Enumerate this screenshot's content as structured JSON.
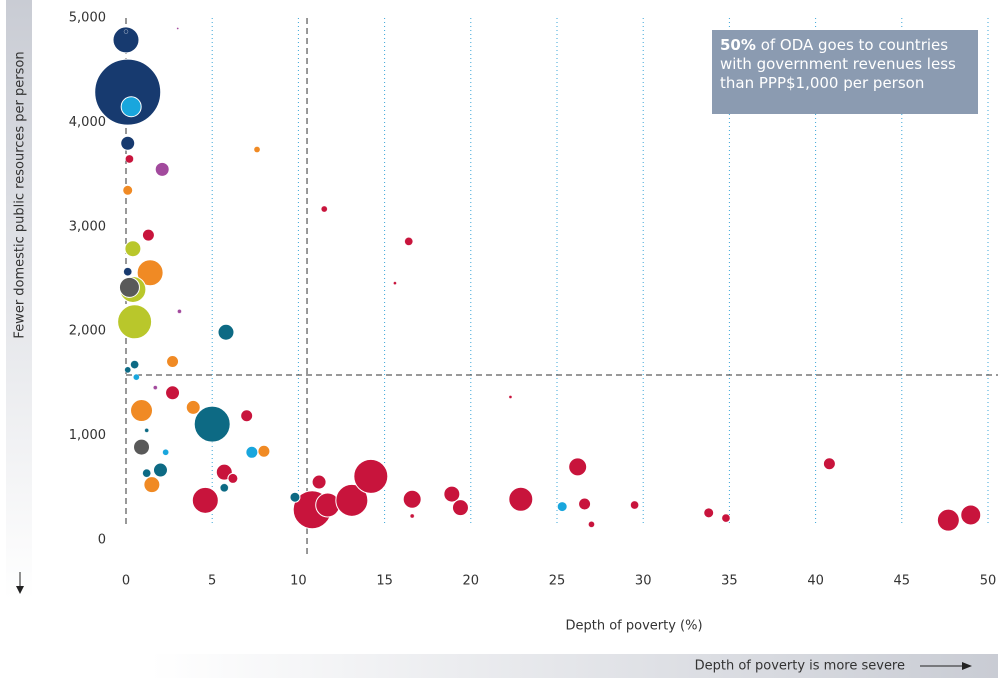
{
  "chart_data": {
    "type": "bubble",
    "xlabel": "Depth of poverty (%)",
    "ylabel": "Fewer domestic public resources per person",
    "bottom_note": "Depth of poverty is more severe",
    "annotation_bold": "50%",
    "annotation": "of ODA goes to countries with government revenues less than PPP$1,000 per person",
    "xlim": [
      0,
      50
    ],
    "ylim": [
      0,
      5000
    ],
    "xticks": [
      0,
      5,
      10,
      15,
      20,
      25,
      30,
      35,
      40,
      45,
      50
    ],
    "yticks": [
      0,
      {
        "value": 1000,
        "label": "1,000"
      },
      {
        "value": 2000,
        "label": "2,000"
      },
      {
        "value": 3000,
        "label": "3,000"
      },
      {
        "value": 4000,
        "label": "4,000"
      },
      {
        "value": 5000,
        "label": "5,000"
      }
    ],
    "vline": 10.5,
    "hline": 1580,
    "series": [
      {
        "color": "#173a6f",
        "x": [
          0,
          0.1,
          0.1,
          0,
          0.1
        ],
        "values": [
          4790,
          4290,
          3800,
          4870,
          2570
        ],
        "sizes": [
          13,
          33,
          7,
          2,
          4
        ]
      },
      {
        "color": "#19a6dd",
        "x": [
          0.3,
          4.9,
          7.3,
          25.3,
          2.3,
          0.6
        ],
        "values": [
          4150,
          1180,
          840,
          320,
          840,
          1560
        ],
        "sizes": [
          10,
          6,
          6,
          5,
          3,
          3
        ]
      },
      {
        "color": "#a24a9d",
        "x": [
          2.1,
          3.0,
          3.1,
          1.7
        ],
        "values": [
          3550,
          4900,
          2190,
          1460
        ],
        "sizes": [
          7,
          1,
          2,
          2
        ]
      },
      {
        "color": "#c8143c",
        "x": [
          0.2,
          1.3,
          2.7,
          7.0,
          5.7,
          6.2,
          4.6,
          10.8,
          11.7,
          11.2,
          13.1,
          14.2,
          16.6,
          18.9,
          19.4,
          22.9,
          26.2,
          26.6,
          29.5,
          33.8,
          34.8,
          27.0,
          40.8,
          47.7,
          49.0,
          11.5,
          16.4,
          15.6,
          22.3,
          16.6
        ],
        "values": [
          3650,
          2920,
          1410,
          1190,
          650,
          590,
          380,
          290,
          335,
          555,
          380,
          610,
          390,
          440,
          310,
          390,
          700,
          345,
          335,
          260,
          210,
          150,
          730,
          190,
          240,
          3170,
          2860,
          2460,
          1370,
          230
        ],
        "sizes": [
          4,
          6,
          7,
          6,
          8,
          5,
          13,
          19,
          12,
          7,
          16,
          17,
          9,
          8,
          8,
          12,
          9,
          6,
          4,
          5,
          4,
          3,
          6,
          11,
          10,
          3,
          4,
          1.5,
          1.5,
          2
        ]
      },
      {
        "color": "#f08a24",
        "x": [
          7.6,
          0.1,
          1.4,
          2.7,
          0.9,
          3.9,
          1.5,
          8.0
        ],
        "values": [
          3740,
          3350,
          2560,
          1710,
          1240,
          1270,
          530,
          850
        ],
        "sizes": [
          3,
          5,
          13,
          6,
          11,
          7,
          8,
          6
        ]
      },
      {
        "color": "#b9c72b",
        "x": [
          0.4,
          0.4,
          0.5
        ],
        "values": [
          2790,
          2400,
          2090
        ],
        "sizes": [
          8,
          13,
          17
        ]
      },
      {
        "color": "#0d6a84",
        "x": [
          5.8,
          5.0,
          2.0,
          0.5,
          1.2,
          5.7,
          9.8,
          0.1,
          1.2
        ],
        "values": [
          1990,
          1110,
          670,
          1680,
          640,
          500,
          410,
          1630,
          1050
        ],
        "sizes": [
          8,
          18,
          7,
          4,
          4,
          4,
          5,
          3,
          2
        ]
      },
      {
        "color": "#595959",
        "x": [
          0.2,
          0.9
        ],
        "values": [
          2420,
          890
        ],
        "sizes": [
          10,
          8
        ]
      }
    ]
  }
}
